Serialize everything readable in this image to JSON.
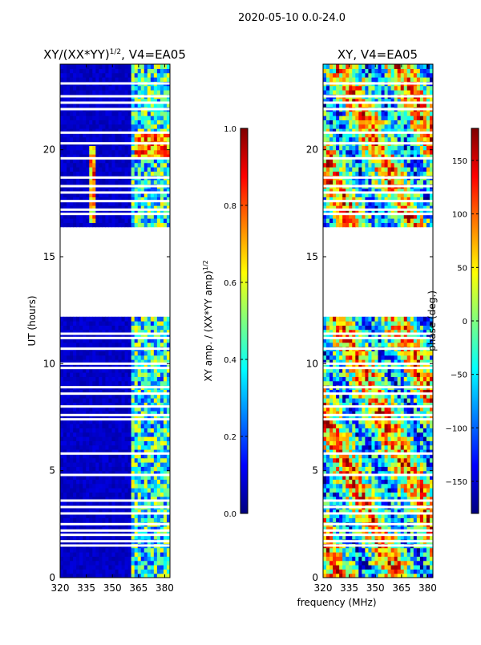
{
  "suptitle": "2020-05-10 0.0-24.0",
  "shared_xlabel": "frequency (MHz)",
  "colors": {
    "jet": [
      "#00007f",
      "#0000ff",
      "#007fff",
      "#00ffff",
      "#7fff7f",
      "#ffff00",
      "#ff7f00",
      "#ff0000",
      "#7f0000"
    ],
    "axis": "#000000",
    "background": "#ffffff"
  },
  "chart_data": [
    {
      "type": "heatmap",
      "title_main": "XY/(XX*YY)",
      "title_sup": "1/2",
      "title_tail": ", V4=EA05",
      "xlabel": "",
      "ylabel": "UT (hours)",
      "xlim": [
        320,
        383
      ],
      "ylim": [
        0,
        24
      ],
      "xticks": [
        320,
        335,
        350,
        365,
        380
      ],
      "yticks": [
        0,
        5,
        10,
        15,
        20
      ],
      "colorbar": {
        "label_main": "XY amp. / (XX*YY amp)",
        "label_sup": "1/2",
        "range": [
          0.0,
          1.0
        ],
        "ticks": [
          "0.0",
          "0.2",
          "0.4",
          "0.6",
          "0.8",
          "1.0"
        ],
        "tick_values": [
          0.0,
          0.2,
          0.4,
          0.6,
          0.8,
          1.0
        ]
      },
      "empty_ut_ranges": [
        [
          12.2,
          16.3
        ]
      ],
      "flagged_ut_rows": [
        1.5,
        1.7,
        2.0,
        2.2,
        2.5,
        3.0,
        3.3,
        3.6,
        4.8,
        5.8,
        7.4,
        7.6,
        8.0,
        8.6,
        8.9,
        9.8,
        10.0,
        10.7,
        11.2,
        11.4,
        17.0,
        17.2,
        17.6,
        18.0,
        18.3,
        18.7,
        19.6,
        20.3,
        20.8,
        21.9,
        22.2,
        22.5,
        23.1
      ]
    },
    {
      "type": "heatmap",
      "title_main": "XY, V4=EA05",
      "xlabel": "frequency (MHz)",
      "ylabel": "",
      "xlim": [
        320,
        383
      ],
      "ylim": [
        0,
        24
      ],
      "xticks": [
        320,
        335,
        350,
        365,
        380
      ],
      "yticks": [
        0,
        5,
        10,
        15,
        20
      ],
      "colorbar": {
        "label_main": "phase (deg.)",
        "range": [
          -180,
          180
        ],
        "ticks": [
          "−150",
          "−100",
          "−50",
          "0",
          "50",
          "100",
          "150"
        ],
        "tick_values": [
          -150,
          -100,
          -50,
          0,
          50,
          100,
          150
        ]
      },
      "empty_ut_ranges": [
        [
          12.2,
          16.3
        ]
      ],
      "flagged_ut_rows": [
        1.5,
        1.7,
        2.0,
        2.2,
        2.5,
        3.0,
        3.3,
        3.6,
        4.8,
        5.8,
        7.4,
        7.6,
        8.0,
        8.6,
        8.9,
        9.8,
        10.0,
        10.7,
        11.2,
        11.4,
        17.0,
        17.2,
        17.6,
        18.0,
        18.3,
        18.7,
        19.6,
        20.3,
        20.8,
        21.9,
        22.2,
        22.5,
        23.1
      ]
    }
  ]
}
